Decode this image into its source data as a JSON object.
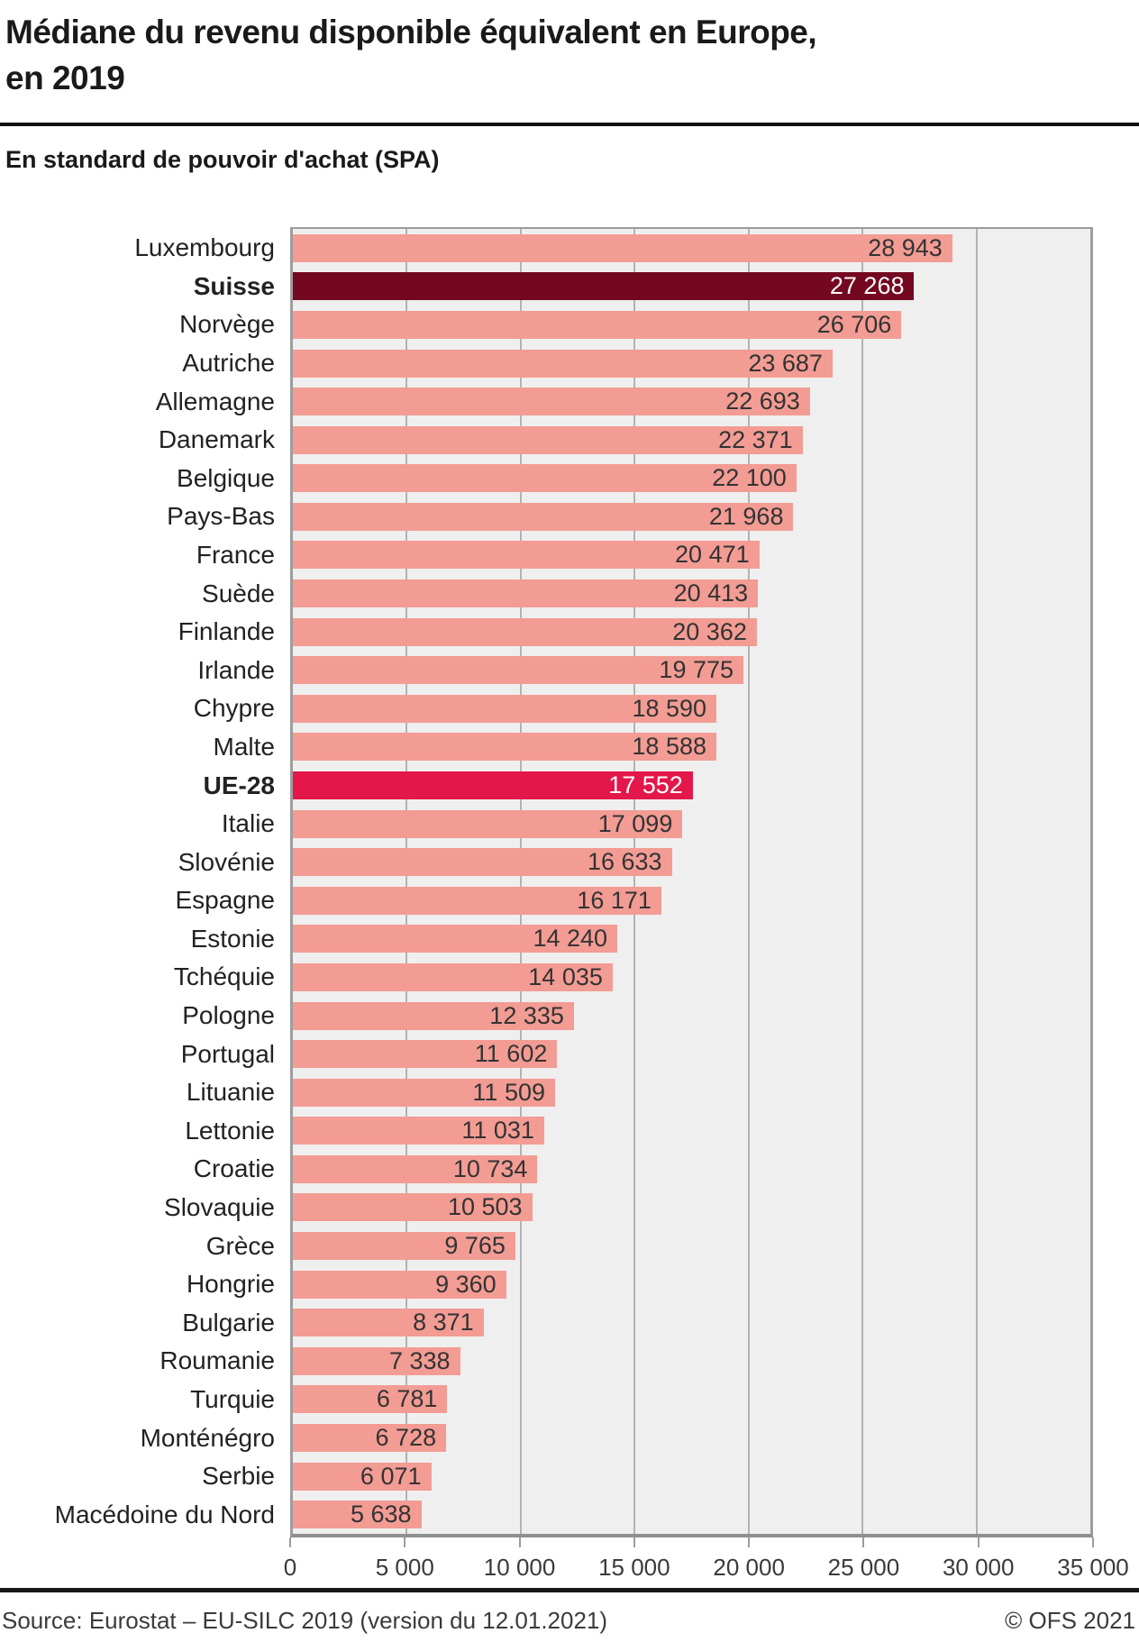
{
  "header": {
    "title_line1": "Médiane du revenu disponible équivalent en Europe,",
    "title_line2": "en 2019",
    "subtitle": "En standard de pouvoir d'achat (SPA)"
  },
  "chart_data": {
    "type": "bar",
    "orientation": "horizontal",
    "title": "Médiane du revenu disponible équivalent en Europe, en 2019",
    "subtitle": "En standard de pouvoir d'achat (SPA)",
    "xlabel": "",
    "ylabel": "",
    "xlim": [
      0,
      35000
    ],
    "grid": true,
    "legend": "none",
    "categories": [
      "Luxembourg",
      "Suisse",
      "Norvège",
      "Autriche",
      "Allemagne",
      "Danemark",
      "Belgique",
      "Pays-Bas",
      "France",
      "Suède",
      "Finlande",
      "Irlande",
      "Chypre",
      "Malte",
      "UE-28",
      "Italie",
      "Slovénie",
      "Espagne",
      "Estonie",
      "Tchéquie",
      "Pologne",
      "Portugal",
      "Lituanie",
      "Lettonie",
      "Croatie",
      "Slovaquie",
      "Grèce",
      "Hongrie",
      "Bulgarie",
      "Roumanie",
      "Turquie",
      "Monténégro",
      "Serbie",
      "Macédoine du Nord"
    ],
    "values": [
      28943,
      27268,
      26706,
      23687,
      22693,
      22371,
      22100,
      21968,
      20471,
      20413,
      20362,
      19775,
      18590,
      18588,
      17552,
      17099,
      16633,
      16171,
      14240,
      14035,
      12335,
      11602,
      11509,
      11031,
      10734,
      10503,
      9765,
      9360,
      8371,
      7338,
      6781,
      6728,
      6071,
      5638
    ],
    "value_labels": [
      "28 943",
      "27 268",
      "26 706",
      "23 687",
      "22 693",
      "22 371",
      "22 100",
      "21 968",
      "20 471",
      "20 413",
      "20 362",
      "19 775",
      "18 590",
      "18 588",
      "17 552",
      "17 099",
      "16 633",
      "16 171",
      "14 240",
      "14 035",
      "12 335",
      "11 602",
      "11 509",
      "11 031",
      "10 734",
      "10 503",
      "9 765",
      "9 360",
      "8 371",
      "7 338",
      "6 781",
      "6 728",
      "6 071",
      "5 638"
    ],
    "emphasis": [
      "none",
      "ch",
      "none",
      "none",
      "none",
      "none",
      "none",
      "none",
      "none",
      "none",
      "none",
      "none",
      "none",
      "none",
      "eu",
      "none",
      "none",
      "none",
      "none",
      "none",
      "none",
      "none",
      "none",
      "none",
      "none",
      "none",
      "none",
      "none",
      "none",
      "none",
      "none",
      "none",
      "none",
      "none"
    ],
    "bold_labels": [
      "Suisse",
      "UE-28"
    ],
    "x_tick_labels": [
      "0",
      "5 000",
      "10 000",
      "15 000",
      "20 000",
      "25 000",
      "30 000",
      "35 000"
    ],
    "x_tick_values": [
      0,
      5000,
      10000,
      15000,
      20000,
      25000,
      30000,
      35000
    ],
    "colors": {
      "bar_default": "#f39c94",
      "bar_switzerland": "#740821",
      "bar_eu28": "#e3174a",
      "plot_background": "#efefef",
      "gridline": "#b2b2b2",
      "value_text": "#333333",
      "value_text_highlight": "#ffffff"
    }
  },
  "footer": {
    "source": "Source: Eurostat – EU-SILC 2019 (version du 12.01.2021)",
    "copyright": "© OFS 2021"
  }
}
